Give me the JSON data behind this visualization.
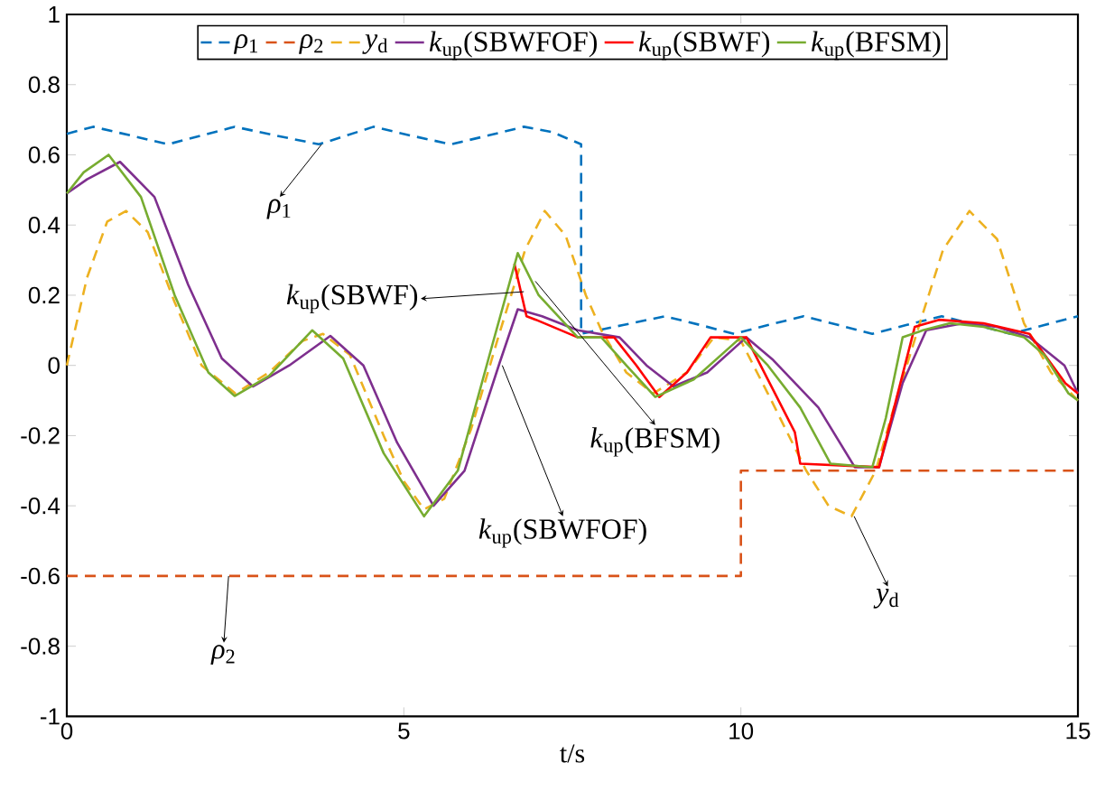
{
  "chart_data": {
    "type": "line",
    "xlabel": "t/s",
    "xlim": [
      0,
      15
    ],
    "ylim": [
      -1,
      1
    ],
    "xticks": [
      0,
      5,
      10,
      15
    ],
    "yticks": [
      -1,
      -0.8,
      -0.6,
      -0.4,
      -0.2,
      0,
      0.2,
      0.4,
      0.6,
      0.8,
      1
    ],
    "legend": "top",
    "series": [
      {
        "name": "*ρ*$_{1}$",
        "color": "#0072bd",
        "line_style": "dashed",
        "x": [
          0,
          0.39,
          0.95,
          1.5,
          2.0,
          2.49,
          3.1,
          3.74,
          4.15,
          4.55,
          5.1,
          5.7,
          6.25,
          6.78,
          7.2,
          7.63,
          7.63,
          8.25,
          8.87,
          9.4,
          9.9,
          10.4,
          10.93,
          11.45,
          11.95,
          12.45,
          12.98,
          13.5,
          14.0,
          14.5,
          15
        ],
        "values": [
          0.66,
          0.68,
          0.655,
          0.63,
          0.655,
          0.68,
          0.655,
          0.63,
          0.655,
          0.68,
          0.655,
          0.63,
          0.655,
          0.68,
          0.665,
          0.63,
          0.09,
          0.115,
          0.14,
          0.115,
          0.09,
          0.115,
          0.14,
          0.115,
          0.09,
          0.115,
          0.14,
          0.115,
          0.09,
          0.115,
          0.14
        ]
      },
      {
        "name": "*ρ*$_{2}$",
        "color": "#d95319",
        "line_style": "dashed",
        "x": [
          0,
          10,
          10,
          15
        ],
        "values": [
          -0.6,
          -0.6,
          -0.3,
          -0.3
        ]
      },
      {
        "name": "*y*$_{d}$",
        "color": "#edb120",
        "line_style": "dashed",
        "x": [
          0,
          0.3,
          0.6,
          0.88,
          1.2,
          1.6,
          2.0,
          2.5,
          3.0,
          3.5,
          3.8,
          4.2,
          4.7,
          5.0,
          5.3,
          5.6,
          6.0,
          6.4,
          6.8,
          7.09,
          7.4,
          7.7,
          7.93,
          8.3,
          8.7,
          9.2,
          9.6,
          10.0,
          10.4,
          10.97,
          11.3,
          11.64,
          12.0,
          12.3,
          12.67,
          13.0,
          13.39,
          13.8,
          14.2,
          14.6,
          15
        ],
        "values": [
          0,
          0.25,
          0.41,
          0.44,
          0.38,
          0.18,
          0.0,
          -0.08,
          -0.02,
          0.07,
          0.09,
          0.03,
          -0.2,
          -0.33,
          -0.41,
          -0.38,
          -0.18,
          0.08,
          0.33,
          0.44,
          0.37,
          0.2,
          0.1,
          -0.02,
          -0.08,
          -0.02,
          0.08,
          0.07,
          -0.08,
          -0.3,
          -0.4,
          -0.43,
          -0.3,
          -0.1,
          0.13,
          0.33,
          0.44,
          0.36,
          0.12,
          -0.02,
          -0.1
        ]
      },
      {
        "name": "*k*$_{up}$(SBWFOF)",
        "color": "#7e2f8e",
        "line_style": "solid",
        "x": [
          0,
          0.3,
          0.79,
          1.3,
          1.8,
          2.3,
          2.76,
          3.3,
          3.91,
          4.4,
          4.9,
          5.44,
          5.9,
          6.42,
          6.69,
          7.05,
          7.58,
          8.2,
          8.6,
          9.0,
          9.5,
          10.08,
          10.48,
          11.15,
          11.69,
          12.05,
          12.4,
          12.75,
          13.3,
          13.8,
          14.28,
          14.8,
          15
        ],
        "values": [
          0.49,
          0.53,
          0.58,
          0.48,
          0.23,
          0.02,
          -0.06,
          0.0,
          0.084,
          0.0,
          -0.22,
          -0.4,
          -0.3,
          0.007,
          0.16,
          0.14,
          0.1,
          0.08,
          0.0,
          -0.06,
          -0.02,
          0.08,
          0.015,
          -0.12,
          -0.29,
          -0.29,
          -0.05,
          0.1,
          0.12,
          0.11,
          0.08,
          0.0,
          -0.08
        ]
      },
      {
        "name": "*k*$_{up}$(SBWF)",
        "color": "#ff0000",
        "line_style": "solid",
        "x": [
          6.64,
          6.82,
          6.96,
          7.58,
          8.12,
          8.45,
          8.79,
          9.2,
          9.55,
          10.08,
          10.8,
          10.88,
          12.05,
          12.3,
          12.58,
          12.94,
          13.6,
          14.28,
          14.81,
          15
        ],
        "values": [
          0.29,
          0.14,
          0.13,
          0.08,
          0.08,
          0.0,
          -0.09,
          -0.02,
          0.08,
          0.08,
          -0.19,
          -0.28,
          -0.29,
          -0.1,
          0.11,
          0.13,
          0.12,
          0.09,
          -0.05,
          -0.08
        ]
      },
      {
        "name": "*k*$_{up}$(BFSM)",
        "color": "#77ac30",
        "line_style": "solid",
        "x": [
          0,
          0.25,
          0.62,
          1.1,
          1.6,
          2.1,
          2.49,
          3.0,
          3.64,
          4.1,
          4.7,
          5.3,
          5.8,
          6.3,
          6.69,
          7.0,
          7.58,
          7.93,
          8.3,
          8.73,
          9.3,
          10.0,
          10.4,
          10.88,
          11.33,
          11.95,
          12.15,
          12.4,
          12.7,
          13.1,
          13.6,
          14.2,
          14.5,
          14.86,
          15
        ],
        "values": [
          0.49,
          0.55,
          0.6,
          0.48,
          0.2,
          -0.02,
          -0.087,
          -0.03,
          0.1,
          0.02,
          -0.25,
          -0.43,
          -0.3,
          0.05,
          0.32,
          0.2,
          0.08,
          0.08,
          0.0,
          -0.09,
          -0.04,
          0.08,
          0.0,
          -0.12,
          -0.28,
          -0.29,
          -0.15,
          0.08,
          0.1,
          0.12,
          0.11,
          0.08,
          0.03,
          -0.08,
          -0.1
        ]
      }
    ],
    "annotations": [
      {
        "text": "*ρ*$_{1}$",
        "x": 3.78,
        "y": 0.63
      },
      {
        "text": "*k*$_{up}$(SBWF)",
        "x": 6.78,
        "y": 0.21
      },
      {
        "text": "*k*$_{up}$(BFSM)",
        "x": 6.95,
        "y": 0.24
      },
      {
        "text": "*k*$_{up}$(SBWFOF)",
        "x": 6.46,
        "y": 0.0
      },
      {
        "text": "*ρ*$_{2}$",
        "x": 2.4,
        "y": -0.6
      },
      {
        "text": "*y*$_{d}$",
        "x": 11.68,
        "y": -0.43
      }
    ]
  }
}
